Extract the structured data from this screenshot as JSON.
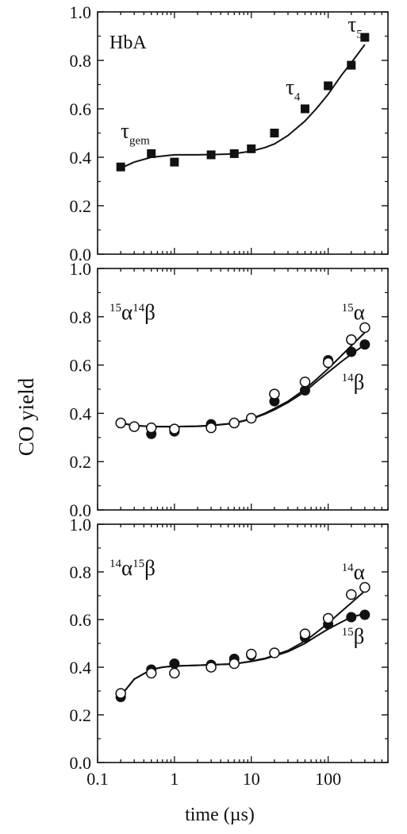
{
  "chart_data": {
    "type": "scatter",
    "xlabel": "time (µs)",
    "ylabel": "CO yield",
    "xscale": "log",
    "xlim": [
      0.1,
      600
    ],
    "x_ticks": [
      0.1,
      1,
      10,
      100
    ],
    "x_tick_labels": [
      "0.1",
      "1",
      "10",
      "100"
    ],
    "panels": [
      {
        "label": "HbA",
        "ylim": [
          0.0,
          1.0
        ],
        "y_ticks": [
          0.0,
          0.2,
          0.4,
          0.6,
          0.8,
          1.0
        ],
        "y_tick_labels": [
          "0.0",
          "0.2",
          "0.4",
          "0.6",
          "0.8",
          "1.0"
        ],
        "annotations": [
          {
            "base": "τ",
            "sub": "gem",
            "x": 0.2,
            "y": 0.48
          },
          {
            "base": "τ",
            "sub": "4",
            "x": 28,
            "y": 0.66
          },
          {
            "base": "τ",
            "sub": "5",
            "x": 180,
            "y": 0.92
          }
        ],
        "series": [
          {
            "marker": "filled-square",
            "x": [
              0.2,
              0.5,
              1,
              3,
              6,
              10,
              20,
              50,
              100,
              200,
              300
            ],
            "y": [
              0.36,
              0.415,
              0.38,
              0.41,
              0.415,
              0.435,
              0.5,
              0.6,
              0.695,
              0.78,
              0.895
            ]
          }
        ],
        "fits": [
          {
            "x": [
              0.2,
              0.3,
              0.5,
              0.7,
              1,
              2,
              3,
              5,
              7,
              10,
              15,
              20,
              30,
              50,
              70,
              100,
              150,
              200,
              300
            ],
            "y": [
              0.355,
              0.38,
              0.4,
              0.405,
              0.41,
              0.41,
              0.411,
              0.413,
              0.418,
              0.425,
              0.44,
              0.455,
              0.49,
              0.55,
              0.6,
              0.66,
              0.74,
              0.79,
              0.865
            ]
          }
        ]
      },
      {
        "label_parts": [
          [
            "15",
            "α"
          ],
          [
            "14",
            "β"
          ]
        ],
        "ylim": [
          0.0,
          1.0
        ],
        "y_ticks": [
          0.0,
          0.2,
          0.4,
          0.6,
          0.8,
          1.0
        ],
        "y_tick_labels": [
          "0.0",
          "0.2",
          "0.4",
          "0.6",
          "0.8",
          "1.0"
        ],
        "annotations": [
          {
            "sup": "15",
            "base": "α",
            "x": 150,
            "y": 0.79
          },
          {
            "sup": "14",
            "base": "β",
            "x": 150,
            "y": 0.5
          }
        ],
        "series": [
          {
            "marker": "filled-circle",
            "x": [
              0.2,
              0.3,
              0.5,
              1,
              3,
              6,
              10,
              20,
              50,
              100,
              200,
              300
            ],
            "y": [
              0.36,
              0.345,
              0.315,
              0.325,
              0.355,
              0.36,
              0.38,
              0.45,
              0.495,
              0.62,
              0.655,
              0.685
            ]
          },
          {
            "marker": "open-circle",
            "x": [
              0.2,
              0.3,
              0.5,
              1,
              3,
              6,
              10,
              20,
              50,
              100,
              200,
              300
            ],
            "y": [
              0.36,
              0.345,
              0.34,
              0.335,
              0.34,
              0.36,
              0.38,
              0.48,
              0.53,
              0.61,
              0.705,
              0.755
            ]
          }
        ],
        "fits": [
          {
            "x": [
              0.2,
              0.3,
              0.5,
              1,
              2,
              3,
              5,
              7,
              10,
              15,
              20,
              30,
              50,
              70,
              100,
              150,
              200,
              300
            ],
            "y": [
              0.36,
              0.35,
              0.345,
              0.345,
              0.347,
              0.35,
              0.357,
              0.365,
              0.378,
              0.4,
              0.42,
              0.45,
              0.5,
              0.54,
              0.585,
              0.64,
              0.68,
              0.735
            ]
          },
          {
            "x": [
              0.2,
              0.3,
              0.5,
              1,
              2,
              3,
              5,
              7,
              10,
              15,
              20,
              30,
              50,
              70,
              100,
              150,
              200,
              300
            ],
            "y": [
              0.36,
              0.35,
              0.345,
              0.345,
              0.346,
              0.349,
              0.356,
              0.364,
              0.376,
              0.397,
              0.415,
              0.445,
              0.49,
              0.53,
              0.57,
              0.615,
              0.645,
              0.685
            ]
          }
        ]
      },
      {
        "label_parts": [
          [
            "14",
            "α"
          ],
          [
            "15",
            "β"
          ]
        ],
        "ylim": [
          0.0,
          1.0
        ],
        "y_ticks": [
          0.0,
          0.2,
          0.4,
          0.6,
          0.8,
          1.0
        ],
        "y_tick_labels": [
          "0.0",
          "0.2",
          "0.4",
          "0.6",
          "0.8",
          "1.0"
        ],
        "annotations": [
          {
            "sup": "14",
            "base": "α",
            "x": 150,
            "y": 0.77
          },
          {
            "sup": "15",
            "base": "β",
            "x": 150,
            "y": 0.5
          }
        ],
        "series": [
          {
            "marker": "filled-circle",
            "x": [
              0.2,
              0.5,
              1,
              3,
              6,
              10,
              20,
              50,
              100,
              200,
              300
            ],
            "y": [
              0.275,
              0.39,
              0.415,
              0.41,
              0.435,
              0.45,
              0.46,
              0.525,
              0.58,
              0.61,
              0.62
            ]
          },
          {
            "marker": "open-circle",
            "x": [
              0.2,
              0.5,
              1,
              3,
              6,
              10,
              20,
              50,
              100,
              200,
              300
            ],
            "y": [
              0.29,
              0.375,
              0.375,
              0.4,
              0.415,
              0.455,
              0.46,
              0.54,
              0.605,
              0.705,
              0.735
            ]
          }
        ],
        "fits": [
          {
            "x": [
              0.2,
              0.3,
              0.5,
              0.7,
              1,
              2,
              3,
              5,
              7,
              10,
              15,
              20,
              30,
              50,
              70,
              100,
              150,
              200,
              300
            ],
            "y": [
              0.28,
              0.35,
              0.39,
              0.4,
              0.405,
              0.408,
              0.41,
              0.413,
              0.417,
              0.425,
              0.437,
              0.45,
              0.47,
              0.51,
              0.545,
              0.585,
              0.635,
              0.67,
              0.72
            ]
          },
          {
            "x": [
              0.2,
              0.3,
              0.5,
              0.7,
              1,
              2,
              3,
              5,
              7,
              10,
              15,
              20,
              30,
              50,
              70,
              100,
              150,
              200,
              300
            ],
            "y": [
              0.28,
              0.35,
              0.39,
              0.4,
              0.405,
              0.408,
              0.41,
              0.413,
              0.417,
              0.424,
              0.435,
              0.447,
              0.465,
              0.5,
              0.53,
              0.56,
              0.59,
              0.61,
              0.625
            ]
          }
        ]
      }
    ]
  }
}
